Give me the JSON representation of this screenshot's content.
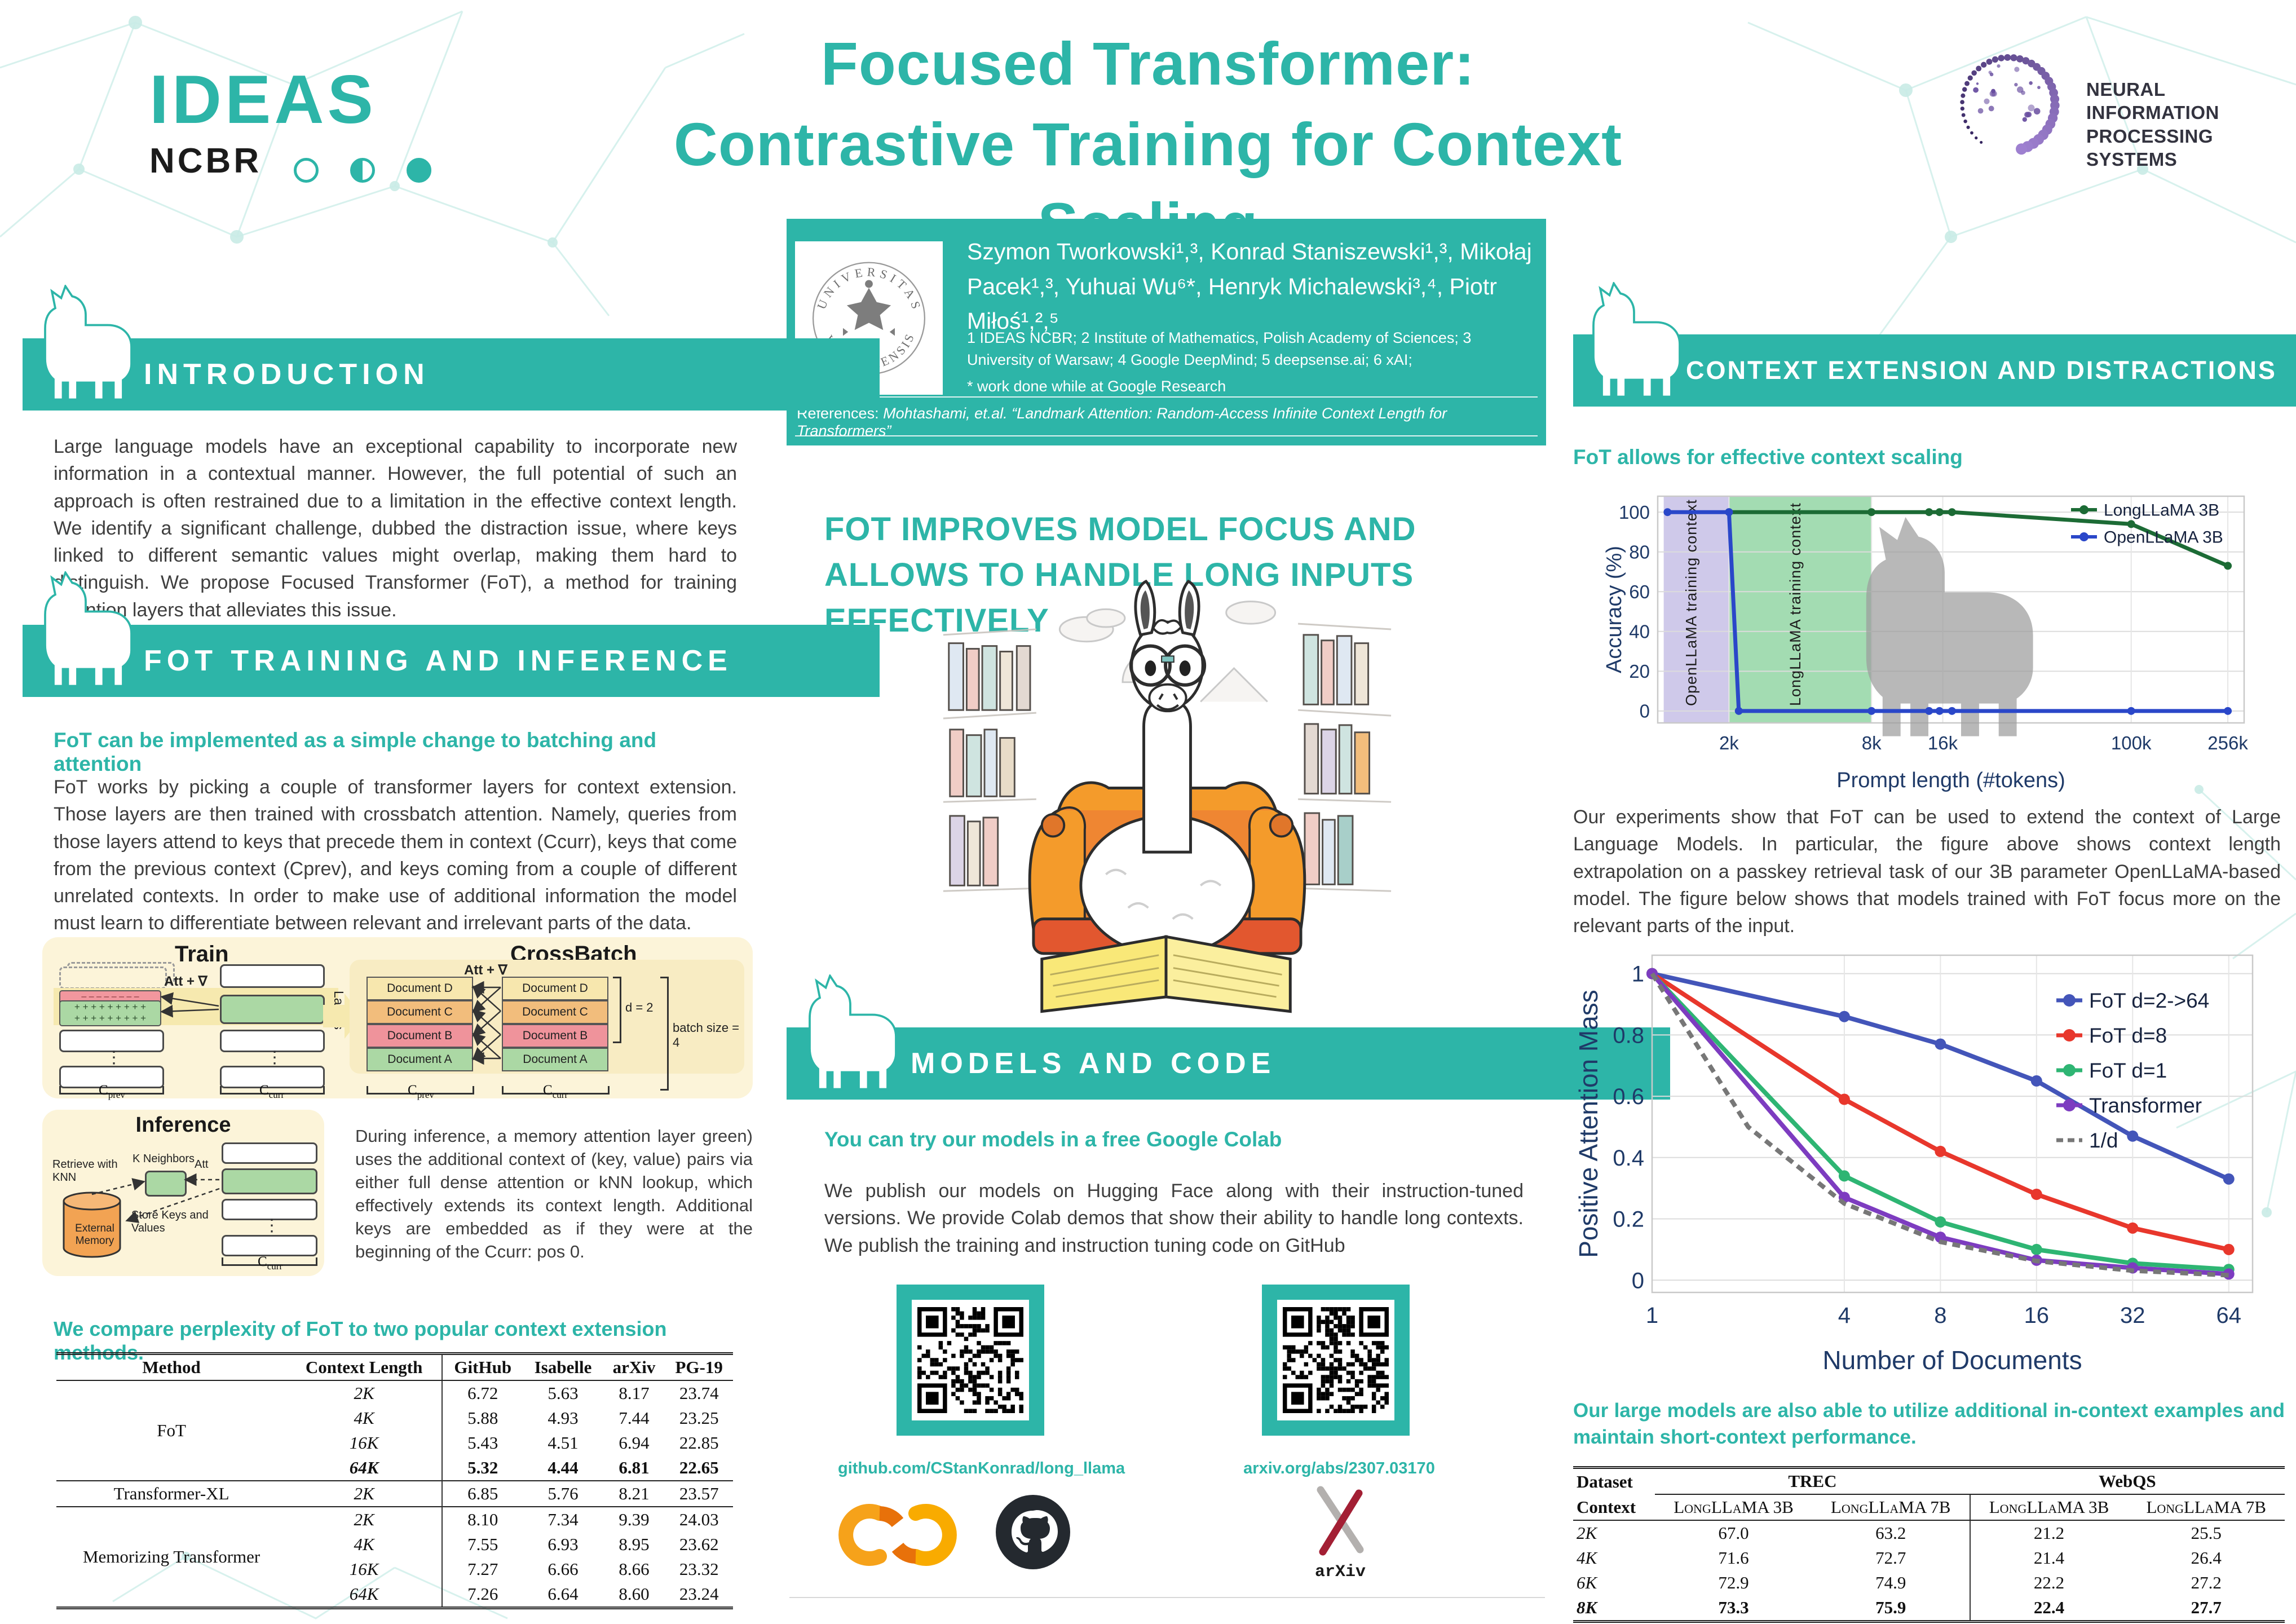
{
  "colors": {
    "accent": "#2db5a8",
    "navy": "#1f3a68",
    "body_text": "#3e3e3e",
    "longllama_green": "#1c6b35",
    "openllama_blue": "#2a47c9",
    "band_purple": "#c7c0e6",
    "band_green": "#93d6a4",
    "fot_blue": "#4355b9",
    "fot_red": "#e8372c",
    "fot_green": "#2eb573",
    "transformer_purple": "#7d3cc0",
    "cream": "#fcf4d9",
    "doc_yellow": "#f7e7ae",
    "doc_orange": "#f2bd7c",
    "doc_pink": "#ef939b",
    "doc_green": "#abd8a4"
  },
  "header": {
    "title_line1": "Focused Transformer:",
    "title_line2": "Contrastive Training for Context Scaling",
    "ideas_logo": {
      "ideas": "IDEAS",
      "ncbr": "NCBR"
    },
    "neurips": {
      "line1": "NEURAL INFORMATION",
      "line2": "PROCESSING SYSTEMS"
    }
  },
  "authors_box": {
    "names": "Szymon Tworkowski¹,³, Konrad Staniszewski¹,³, Mikołaj Pacek¹,³, Yuhuai Wu⁶*, Henryk Michalewski³,⁴, Piotr Miłoś¹,²,⁵",
    "affiliations": "1 IDEAS NCBR; 2 Institute of Mathematics, Polish Academy of Sciences; 3 University of Warsaw; 4 Google DeepMind; 5 deepsense.ai; 6 xAI;",
    "work_note": "* work done while at Google Research",
    "references_label": "References: ",
    "references_text": "Mohtashami, et.al. “Landmark Attention: Random-Access Infinite Context Length for Transformers”",
    "seal_top": "UNIVERSITAS",
    "seal_bottom": "VARSOVIENSIS"
  },
  "sections": {
    "intro": {
      "title": "INTRODUCTION",
      "body": "Large language models have an exceptional capability to incorporate new information in a contextual manner. However, the full potential of such an approach is often restrained due to a limitation in the effective context length. We identify a significant challenge, dubbed the distraction issue, where keys linked to different semantic values might overlap, making them hard to distinguish. We propose Focused Transformer (FoT), a method for training attention layers that alleviates this issue."
    },
    "fot": {
      "title": "FOT TRAINING AND INFERENCE",
      "sub1": "FoT can be implemented as a simple change to batching and attention",
      "body": "FoT works by picking a couple of transformer layers for context extension. Those layers are then trained with crossbatch attention. Namely, queries from those layers attend to keys that precede them in context (Ccurr), keys that come from the previous context (Cprev), and keys coming from a couple of different unrelated contexts. In order to make use of additional information the model must learn to differentiate between relevant and irrelevant parts of the data.",
      "inference_text": "During inference, a memory attention layer green) uses the additional context of (key, value) pairs via either full dense attention or kNN lookup, which effectively extends its context length. Additional keys are embedded as if they were at the beginning of the Ccurr: pos 0.",
      "table_caption": "We compare perplexity of FoT to two popular context extension methods."
    },
    "middle_heading": "FOT IMPROVES MODEL FOCUS AND ALLOWS TO HANDLE LONG INPUTS EFFECTIVELY",
    "models": {
      "title": "MODELS AND CODE",
      "sub": "You can try our models in a free Google Colab",
      "body": "We publish our models on Hugging Face along with their instruction-tuned versions. We provide Colab demos that show their ability to handle long contexts. We publish the training and instruction tuning code on GitHub",
      "github_link": "github.com/CStanKonrad/long_llama",
      "arxiv_link": "arxiv.org/abs/2307.03170",
      "arxiv_label": "arXiv"
    },
    "context": {
      "title": "CONTEXT EXTENSION AND DISTRACTIONS",
      "sub1": "FoT allows for effective context scaling",
      "body": "Our experiments show that FoT can be used to extend the context of Large Language Models. In particular, the figure above shows context length extrapolation on a passkey retrieval task of our 3B parameter OpenLLaMA-based model. The figure below shows that models trained with FoT focus more on the relevant parts of the input.",
      "sub2": "Our large models are also able to utilize additional in-context examples and maintain short-context performance."
    }
  },
  "diagram": {
    "train_title": "Train",
    "crossbatch_title": "CrossBatch",
    "inference_title": "Inference",
    "att_grad": "Att + ∇",
    "att": "Att",
    "layers": "Layers",
    "cprev": {
      "main": "C",
      "sub": "prev"
    },
    "ccurr": {
      "main": "C",
      "sub": "curr"
    },
    "documents": [
      "Document D",
      "Document C",
      "Document B",
      "Document A"
    ],
    "d_eq": "d = 2",
    "batch_size": "batch size = 4",
    "k_neighbors": "K Neighbors",
    "retrieve": "Retrieve with KNN",
    "store": "Store Keys and Values",
    "external_memory": "External Memory",
    "plus_row": "+ + + + + + + + +"
  },
  "table1": {
    "headers": [
      "Method",
      "Context Length",
      "GitHub",
      "Isabelle",
      "arXiv",
      "PG-19"
    ],
    "groups": [
      {
        "method": "FoT",
        "rows": [
          {
            "context": "2K",
            "values": [
              "6.72",
              "5.63",
              "8.17",
              "23.74"
            ],
            "bold": false
          },
          {
            "context": "4K",
            "values": [
              "5.88",
              "4.93",
              "7.44",
              "23.25"
            ],
            "bold": false
          },
          {
            "context": "16K",
            "values": [
              "5.43",
              "4.51",
              "6.94",
              "22.85"
            ],
            "bold": false
          },
          {
            "context": "64K",
            "values": [
              "5.32",
              "4.44",
              "6.81",
              "22.65"
            ],
            "bold": true
          }
        ]
      },
      {
        "method": "Transformer-XL",
        "rows": [
          {
            "context": "2K",
            "values": [
              "6.85",
              "5.76",
              "8.21",
              "23.57"
            ],
            "bold": false
          }
        ]
      },
      {
        "method": "Memorizing Transformer",
        "rows": [
          {
            "context": "2K",
            "values": [
              "8.10",
              "7.34",
              "9.39",
              "24.03"
            ],
            "bold": false
          },
          {
            "context": "4K",
            "values": [
              "7.55",
              "6.93",
              "8.95",
              "23.62"
            ],
            "bold": false
          },
          {
            "context": "16K",
            "values": [
              "7.27",
              "6.66",
              "8.66",
              "23.32"
            ],
            "bold": false
          },
          {
            "context": "64K",
            "values": [
              "7.26",
              "6.64",
              "8.60",
              "23.24"
            ],
            "bold": false
          }
        ]
      }
    ]
  },
  "table2": {
    "dataset_label": "Dataset",
    "context_label": "Context",
    "group_headers": [
      "TREC",
      "WebQS"
    ],
    "col_headers": [
      "LongLLaMA 3B",
      "LongLLaMA 7B",
      "LongLLaMA 3B",
      "LongLLaMA 7B"
    ],
    "rows": [
      {
        "context": "2K",
        "values": [
          "67.0",
          "63.2",
          "21.2",
          "25.5"
        ],
        "bold": false
      },
      {
        "context": "4K",
        "values": [
          "71.6",
          "72.7",
          "21.4",
          "26.4"
        ],
        "bold": false
      },
      {
        "context": "6K",
        "values": [
          "72.9",
          "74.9",
          "22.2",
          "27.2"
        ],
        "bold": false
      },
      {
        "context": "8K",
        "values": [
          "73.3",
          "75.9",
          "22.4",
          "27.7"
        ],
        "bold": true
      }
    ]
  },
  "chart_data": [
    {
      "type": "line",
      "id": "chart1",
      "title": "",
      "xlabel": "Prompt length (#tokens)",
      "ylabel": "Accuracy (%)",
      "x_scale": "log10",
      "xlim": [
        1000,
        300000
      ],
      "ylim": [
        0,
        100
      ],
      "grid": true,
      "x_ticks": [
        {
          "v": 2000,
          "label": "2k"
        },
        {
          "v": 8000,
          "label": "8k"
        },
        {
          "v": 16000,
          "label": "16k"
        },
        {
          "v": 100000,
          "label": "100k"
        },
        {
          "v": 256000,
          "label": "256k"
        }
      ],
      "y_ticks": [
        0,
        20,
        40,
        60,
        80,
        100
      ],
      "bands": [
        {
          "from": 1060,
          "to": 2000,
          "color": "#c7c0e6",
          "label": "OpenLLaMA training context"
        },
        {
          "from": 2000,
          "to": 8000,
          "color": "#93d6a4",
          "label": "LongLLaMA training context"
        }
      ],
      "legend_position": "top-right",
      "series": [
        {
          "name": "LongLLaMA 3B",
          "color": "#1c6b35",
          "points": [
            [
              2000,
              100
            ],
            [
              8000,
              100
            ],
            [
              14000,
              100
            ],
            [
              15500,
              100
            ],
            [
              17500,
              100
            ],
            [
              100000,
              94
            ],
            [
              256000,
              73
            ]
          ]
        },
        {
          "name": "OpenLLaMA 3B",
          "color": "#2a47c9",
          "points": [
            [
              1100,
              100
            ],
            [
              2000,
              100
            ],
            [
              2200,
              0
            ],
            [
              8000,
              0
            ],
            [
              14000,
              0
            ],
            [
              15500,
              0
            ],
            [
              17500,
              0
            ],
            [
              100000,
              0
            ],
            [
              256000,
              0
            ]
          ]
        }
      ]
    },
    {
      "type": "line",
      "id": "chart2",
      "title": "",
      "xlabel": "Number of Documents",
      "ylabel": "Positive Attention Mass",
      "x_scale": "log2",
      "xlim": [
        1,
        76
      ],
      "ylim": [
        0,
        1
      ],
      "grid": true,
      "x_ticks": [
        {
          "v": 1,
          "label": "1"
        },
        {
          "v": 4,
          "label": "4"
        },
        {
          "v": 8,
          "label": "8"
        },
        {
          "v": 16,
          "label": "16"
        },
        {
          "v": 32,
          "label": "32"
        },
        {
          "v": 64,
          "label": "64"
        }
      ],
      "y_ticks": [
        0,
        0.2,
        0.4,
        0.6,
        0.8,
        1
      ],
      "legend_position": "top-right",
      "series": [
        {
          "name": "FoT d=2->64",
          "color": "#4355b9",
          "points": [
            [
              1,
              1.0
            ],
            [
              4,
              0.86
            ],
            [
              8,
              0.77
            ],
            [
              16,
              0.65
            ],
            [
              32,
              0.47
            ],
            [
              64,
              0.33
            ]
          ]
        },
        {
          "name": "FoT d=8",
          "color": "#e8372c",
          "points": [
            [
              1,
              1.0
            ],
            [
              4,
              0.59
            ],
            [
              8,
              0.42
            ],
            [
              16,
              0.28
            ],
            [
              32,
              0.17
            ],
            [
              64,
              0.1
            ]
          ]
        },
        {
          "name": "FoT d=1",
          "color": "#2eb573",
          "points": [
            [
              1,
              1.0
            ],
            [
              4,
              0.34
            ],
            [
              8,
              0.19
            ],
            [
              16,
              0.1
            ],
            [
              32,
              0.055
            ],
            [
              64,
              0.035
            ]
          ]
        },
        {
          "name": "Transformer",
          "color": "#7d3cc0",
          "points": [
            [
              1,
              1.0
            ],
            [
              4,
              0.27
            ],
            [
              8,
              0.14
            ],
            [
              16,
              0.065
            ],
            [
              32,
              0.04
            ],
            [
              64,
              0.02
            ]
          ]
        },
        {
          "name": "1/d",
          "color": "#777777",
          "dashed": true,
          "points": [
            [
              1,
              1.0
            ],
            [
              2,
              0.5
            ],
            [
              4,
              0.25
            ],
            [
              8,
              0.125
            ],
            [
              16,
              0.0625
            ],
            [
              32,
              0.031
            ],
            [
              64,
              0.016
            ]
          ]
        }
      ]
    }
  ]
}
